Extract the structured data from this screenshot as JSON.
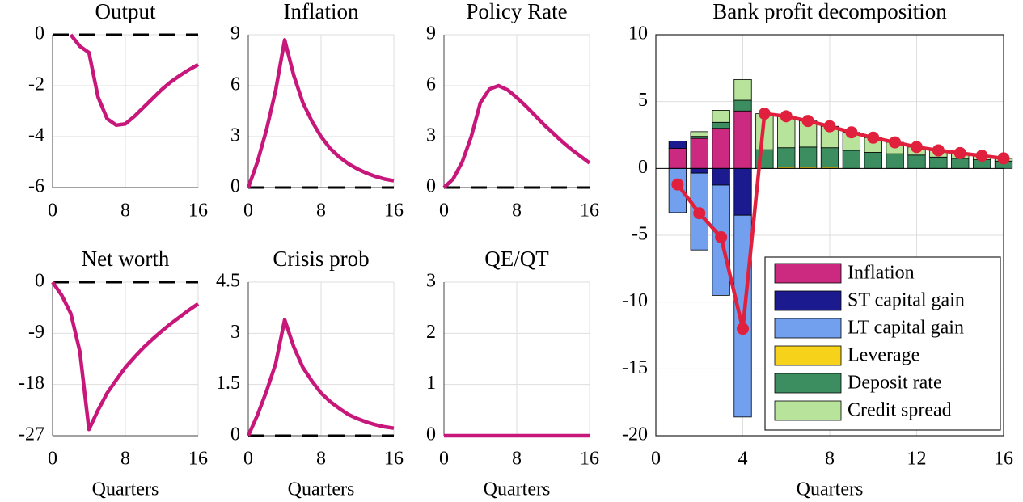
{
  "chart_data": [
    {
      "type": "line",
      "title": "Output",
      "x": [
        0,
        1,
        2,
        3,
        4,
        5,
        6,
        7,
        8,
        9,
        10,
        11,
        12,
        13,
        14,
        15,
        16
      ],
      "values": [
        null,
        null,
        0,
        -0.45,
        -0.7,
        -2.45,
        -3.3,
        -3.55,
        -3.5,
        -3.2,
        -2.85,
        -2.5,
        -2.15,
        -1.85,
        -1.6,
        -1.37,
        -1.17
      ],
      "color": "#c8177a",
      "xlim": [
        0,
        16
      ],
      "xticks": [
        0,
        8,
        16
      ],
      "ylim": [
        -6,
        0
      ],
      "yticks": [
        -6,
        -4,
        -2,
        0
      ],
      "grid": true,
      "zero_line": true
    },
    {
      "type": "line",
      "title": "Inflation",
      "x": [
        0,
        1,
        2,
        3,
        4,
        5,
        6,
        7,
        8,
        9,
        10,
        11,
        12,
        13,
        14,
        15,
        16
      ],
      "values": [
        0,
        1.5,
        3.4,
        5.7,
        8.7,
        6.6,
        5.0,
        3.9,
        3.0,
        2.3,
        1.8,
        1.4,
        1.1,
        0.85,
        0.65,
        0.5,
        0.4
      ],
      "color": "#c8177a",
      "xlim": [
        0,
        16
      ],
      "xticks": [
        0,
        8,
        16
      ],
      "ylim": [
        0,
        9
      ],
      "yticks": [
        0,
        3,
        6,
        9
      ],
      "grid": true,
      "zero_line": true
    },
    {
      "type": "line",
      "title": "Policy Rate",
      "x": [
        0,
        1,
        2,
        3,
        4,
        5,
        6,
        7,
        8,
        9,
        10,
        11,
        12,
        13,
        14,
        15,
        16
      ],
      "values": [
        0,
        0.5,
        1.5,
        3.0,
        5.0,
        5.8,
        6.0,
        5.75,
        5.3,
        4.8,
        4.25,
        3.7,
        3.2,
        2.7,
        2.25,
        1.85,
        1.45
      ],
      "color": "#c8177a",
      "xlim": [
        0,
        16
      ],
      "xticks": [
        0,
        8,
        16
      ],
      "ylim": [
        0,
        9
      ],
      "yticks": [
        0,
        3,
        6,
        9
      ],
      "grid": true,
      "zero_line": true
    },
    {
      "type": "line",
      "title": "Net worth",
      "xlabel": "Quarters",
      "x": [
        0,
        1,
        2,
        3,
        4,
        5,
        6,
        7,
        8,
        9,
        10,
        11,
        12,
        13,
        14,
        15,
        16
      ],
      "values": [
        0,
        -2.3,
        -5.5,
        -12.2,
        -25.9,
        -22.5,
        -19.5,
        -17.2,
        -15,
        -13.2,
        -11.5,
        -10,
        -8.6,
        -7.3,
        -6.1,
        -4.9,
        -3.8
      ],
      "color": "#c8177a",
      "xlim": [
        0,
        16
      ],
      "xticks": [
        0,
        8,
        16
      ],
      "ylim": [
        -27,
        0
      ],
      "yticks": [
        -27,
        -18,
        -9,
        0
      ],
      "grid": true,
      "zero_line": true
    },
    {
      "type": "line",
      "title": "Crisis prob",
      "xlabel": "Quarters",
      "x": [
        0,
        1,
        2,
        3,
        4,
        5,
        6,
        7,
        8,
        9,
        10,
        11,
        12,
        13,
        14,
        15,
        16
      ],
      "values": [
        0,
        0.6,
        1.3,
        2.1,
        3.4,
        2.6,
        2.0,
        1.6,
        1.25,
        1.0,
        0.8,
        0.62,
        0.5,
        0.4,
        0.32,
        0.26,
        0.22
      ],
      "color": "#c8177a",
      "xlim": [
        0,
        16
      ],
      "xticks": [
        0,
        8,
        16
      ],
      "ylim": [
        0,
        4.5
      ],
      "yticks": [
        0,
        1.5,
        3,
        4.5
      ],
      "grid": true,
      "zero_line": true
    },
    {
      "type": "line",
      "title": "QE/QT",
      "xlabel": "Quarters",
      "x": [
        0,
        1,
        2,
        3,
        4,
        5,
        6,
        7,
        8,
        9,
        10,
        11,
        12,
        13,
        14,
        15,
        16
      ],
      "values": [
        0,
        0,
        0,
        0,
        0,
        0,
        0,
        0,
        0,
        0,
        0,
        0,
        0,
        0,
        0,
        0,
        0
      ],
      "color": "#c8177a",
      "xlim": [
        0,
        16
      ],
      "xticks": [
        0,
        8,
        16
      ],
      "ylim": [
        0,
        3
      ],
      "yticks": [
        0,
        1,
        2,
        3
      ],
      "grid": true,
      "zero_line": false
    },
    {
      "type": "bar",
      "title": "Bank profit decomposition",
      "xlabel": "Quarters",
      "stacked": true,
      "legend": "lower right",
      "x": [
        1,
        2,
        3,
        4,
        5,
        6,
        7,
        8,
        9,
        10,
        11,
        12,
        13,
        14,
        15,
        16
      ],
      "series": [
        {
          "name": "Inflation",
          "color": "#cc2a80",
          "values": [
            1.5,
            2.25,
            3.0,
            4.3,
            0,
            0,
            0,
            0,
            0,
            0,
            0,
            0,
            0,
            0,
            0,
            0
          ]
        },
        {
          "name": "ST capital gain",
          "color": "#1b1b8f",
          "values": [
            0.55,
            -0.35,
            -1.25,
            -3.5,
            0,
            0,
            0,
            0,
            0,
            0,
            0,
            0,
            0,
            0,
            0,
            0
          ]
        },
        {
          "name": "LT capital gain",
          "color": "#72a0ee",
          "values": [
            -3.3,
            -5.75,
            -8.25,
            -15.1,
            0,
            0,
            0,
            0,
            0,
            0,
            0,
            0,
            0,
            0,
            0,
            0
          ]
        },
        {
          "name": "Leverage",
          "color": "#f6d21a",
          "values": [
            0,
            0,
            0,
            0,
            0,
            0.1,
            0.1,
            0.1,
            0,
            0,
            0,
            0,
            0,
            0,
            0,
            0
          ]
        },
        {
          "name": "Deposit rate",
          "color": "#3c8e60",
          "values": [
            0,
            0.15,
            0.45,
            0.8,
            1.4,
            1.45,
            1.5,
            1.45,
            1.35,
            1.2,
            1.1,
            1.0,
            0.85,
            0.75,
            0.65,
            0.55
          ]
        },
        {
          "name": "Credit spread",
          "color": "#b8e39b",
          "values": [
            0,
            0.35,
            0.9,
            1.55,
            2.7,
            2.35,
            1.95,
            1.6,
            1.35,
            1.1,
            0.85,
            0.6,
            0.5,
            0.4,
            0.3,
            0.2
          ]
        }
      ],
      "line": {
        "color": "#e0203c",
        "values": [
          -1.2,
          -3.35,
          -5.15,
          -12.0,
          4.1,
          3.9,
          3.55,
          3.15,
          2.7,
          2.3,
          1.95,
          1.6,
          1.35,
          1.15,
          0.95,
          0.75
        ]
      },
      "xlim": [
        0,
        16
      ],
      "xticks": [
        0,
        4,
        8,
        12,
        16
      ],
      "ylim": [
        -20,
        10
      ],
      "yticks": [
        -20,
        -15,
        -10,
        -5,
        0,
        5,
        10
      ],
      "grid": true
    }
  ]
}
